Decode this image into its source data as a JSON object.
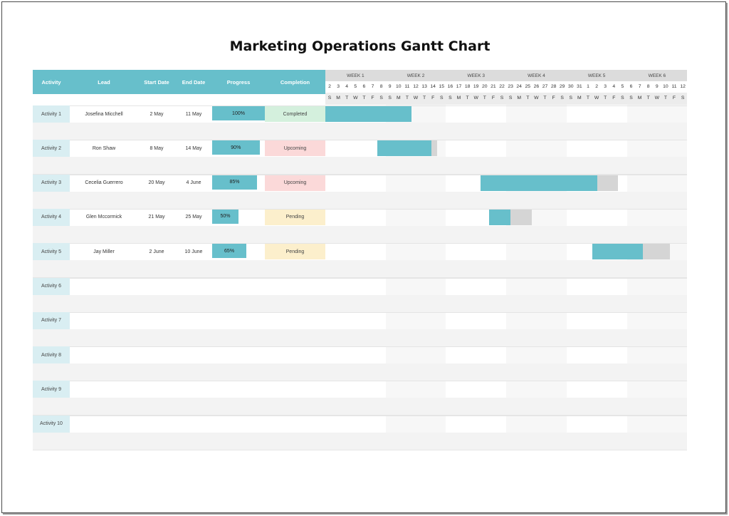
{
  "title": "Marketing Operations Gantt Chart",
  "colors": {
    "header": "#67bfcb",
    "done": "#67bfcb",
    "remaining": "#d5d5d5",
    "completed": "#d4f0dd",
    "upcoming": "#fbd9d9",
    "pending": "#fcefcc",
    "activity": "#d9eef2"
  },
  "headers": {
    "activity": "Activity",
    "lead": "Lead",
    "start": "Start Date",
    "end": "End Date",
    "progress": "Progress",
    "completion": "Completion"
  },
  "weeks": [
    "WEEK 1",
    "WEEK 2",
    "WEEK 3",
    "WEEK 4",
    "WEEK 5",
    "WEEK 6"
  ],
  "day_numbers": [
    "2",
    "3",
    "4",
    "5",
    "6",
    "7",
    "8",
    "9",
    "10",
    "11",
    "12",
    "13",
    "14",
    "15",
    "16",
    "17",
    "18",
    "19",
    "20",
    "21",
    "22",
    "23",
    "24",
    "25",
    "26",
    "27",
    "28",
    "29",
    "30",
    "31",
    "1",
    "2",
    "3",
    "4",
    "5",
    "6",
    "7",
    "8",
    "9",
    "10",
    "11",
    "12"
  ],
  "day_letters": [
    "S",
    "M",
    "T",
    "W",
    "T",
    "F",
    "S",
    "S",
    "M",
    "T",
    "W",
    "T",
    "F",
    "S",
    "S",
    "M",
    "T",
    "W",
    "T",
    "F",
    "S",
    "S",
    "M",
    "T",
    "W",
    "T",
    "F",
    "S",
    "S",
    "M",
    "T",
    "W",
    "T",
    "F",
    "S",
    "S",
    "M",
    "T",
    "W",
    "T",
    "F",
    "S"
  ],
  "chart_data": {
    "type": "gantt",
    "title": "Marketing Operations Gantt Chart",
    "timeline": {
      "start": "2 May",
      "end": "12 June",
      "unit": "day"
    },
    "rows": [
      {
        "activity": "Activity 1",
        "lead": "Josefina Micchell",
        "start": "2 May",
        "end": "11 May",
        "progress": 1.0,
        "progress_label": "100%",
        "completion": "Completed",
        "status": "completed",
        "start_index": 0,
        "duration_days": 10
      },
      {
        "activity": "Activity 2",
        "lead": "Ron Shaw",
        "start": "8 May",
        "end": "14 May",
        "progress": 0.9,
        "progress_label": "90%",
        "completion": "Upcoming",
        "status": "upcoming",
        "start_index": 6,
        "duration_days": 7
      },
      {
        "activity": "Activity 3",
        "lead": "Cecelia Guerrero",
        "start": "20 May",
        "end": "4 June",
        "progress": 0.85,
        "progress_label": "85%",
        "completion": "Upcoming",
        "status": "upcoming",
        "start_index": 18,
        "duration_days": 16
      },
      {
        "activity": "Activity 4",
        "lead": "Glen Mccormick",
        "start": "21 May",
        "end": "25 May",
        "progress": 0.5,
        "progress_label": "50%",
        "completion": "Pending",
        "status": "pending",
        "start_index": 19,
        "duration_days": 5
      },
      {
        "activity": "Activity 5",
        "lead": "Jay Miller",
        "start": "2 June",
        "end": "10 June",
        "progress": 0.65,
        "progress_label": "65%",
        "completion": "Pending",
        "status": "pending",
        "start_index": 31,
        "duration_days": 9
      },
      {
        "activity": "Activity 6"
      },
      {
        "activity": "Activity 7"
      },
      {
        "activity": "Activity 8"
      },
      {
        "activity": "Activity 9"
      },
      {
        "activity": "Activity 10"
      }
    ]
  }
}
